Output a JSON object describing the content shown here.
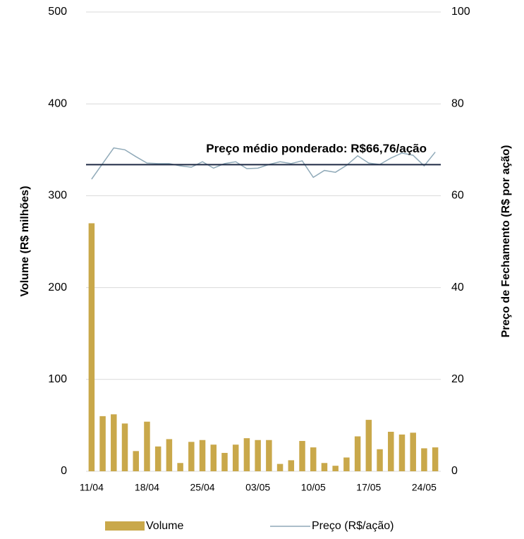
{
  "chart_data": {
    "type": "bar_line",
    "y_label": "Volume (R$ milhões)",
    "y2_label": "Preço de Fechamento (R$ por ação)",
    "categories": [
      "11/04",
      null,
      null,
      null,
      null,
      "18/04",
      null,
      null,
      null,
      null,
      "25/04",
      null,
      null,
      null,
      null,
      "03/05",
      null,
      null,
      null,
      null,
      "10/05",
      null,
      null,
      null,
      null,
      "17/05",
      null,
      null,
      null,
      null,
      "24/05",
      null
    ],
    "series": [
      {
        "name": "Volume",
        "color": "#c9a84a",
        "values": [
          270,
          60,
          62,
          52,
          22,
          54,
          27,
          35,
          9,
          32,
          34,
          29,
          20,
          29,
          36,
          34,
          34,
          8,
          12,
          33,
          26,
          9,
          6,
          15,
          38,
          56,
          24,
          43,
          40,
          42,
          25,
          26
        ]
      },
      {
        "name": "Preço (R$/ação)",
        "color": "#8fa9b8",
        "axis": "y2",
        "values": [
          63.6,
          67,
          70.4,
          70,
          68.5,
          67.1,
          67,
          67,
          66.5,
          66.2,
          67.4,
          66,
          67,
          67.4,
          65.9,
          66,
          66.8,
          67.4,
          67,
          67.6,
          64,
          65.5,
          65.1,
          66.6,
          68.7,
          67.1,
          66.8,
          68.2,
          69.3,
          68.8,
          66.5,
          69.5
        ]
      }
    ],
    "average": {
      "value": 66.76,
      "label": "Preço médio ponderado: R$66,76/ação",
      "color": "#1f2a44"
    },
    "ylim": [
      0,
      500
    ],
    "yticks": [
      0,
      100,
      200,
      300,
      400,
      500
    ],
    "y2lim": [
      0,
      100
    ],
    "y2ticks": [
      0,
      20,
      40,
      60,
      80,
      100
    ],
    "grid": true,
    "legend": "bottom"
  }
}
